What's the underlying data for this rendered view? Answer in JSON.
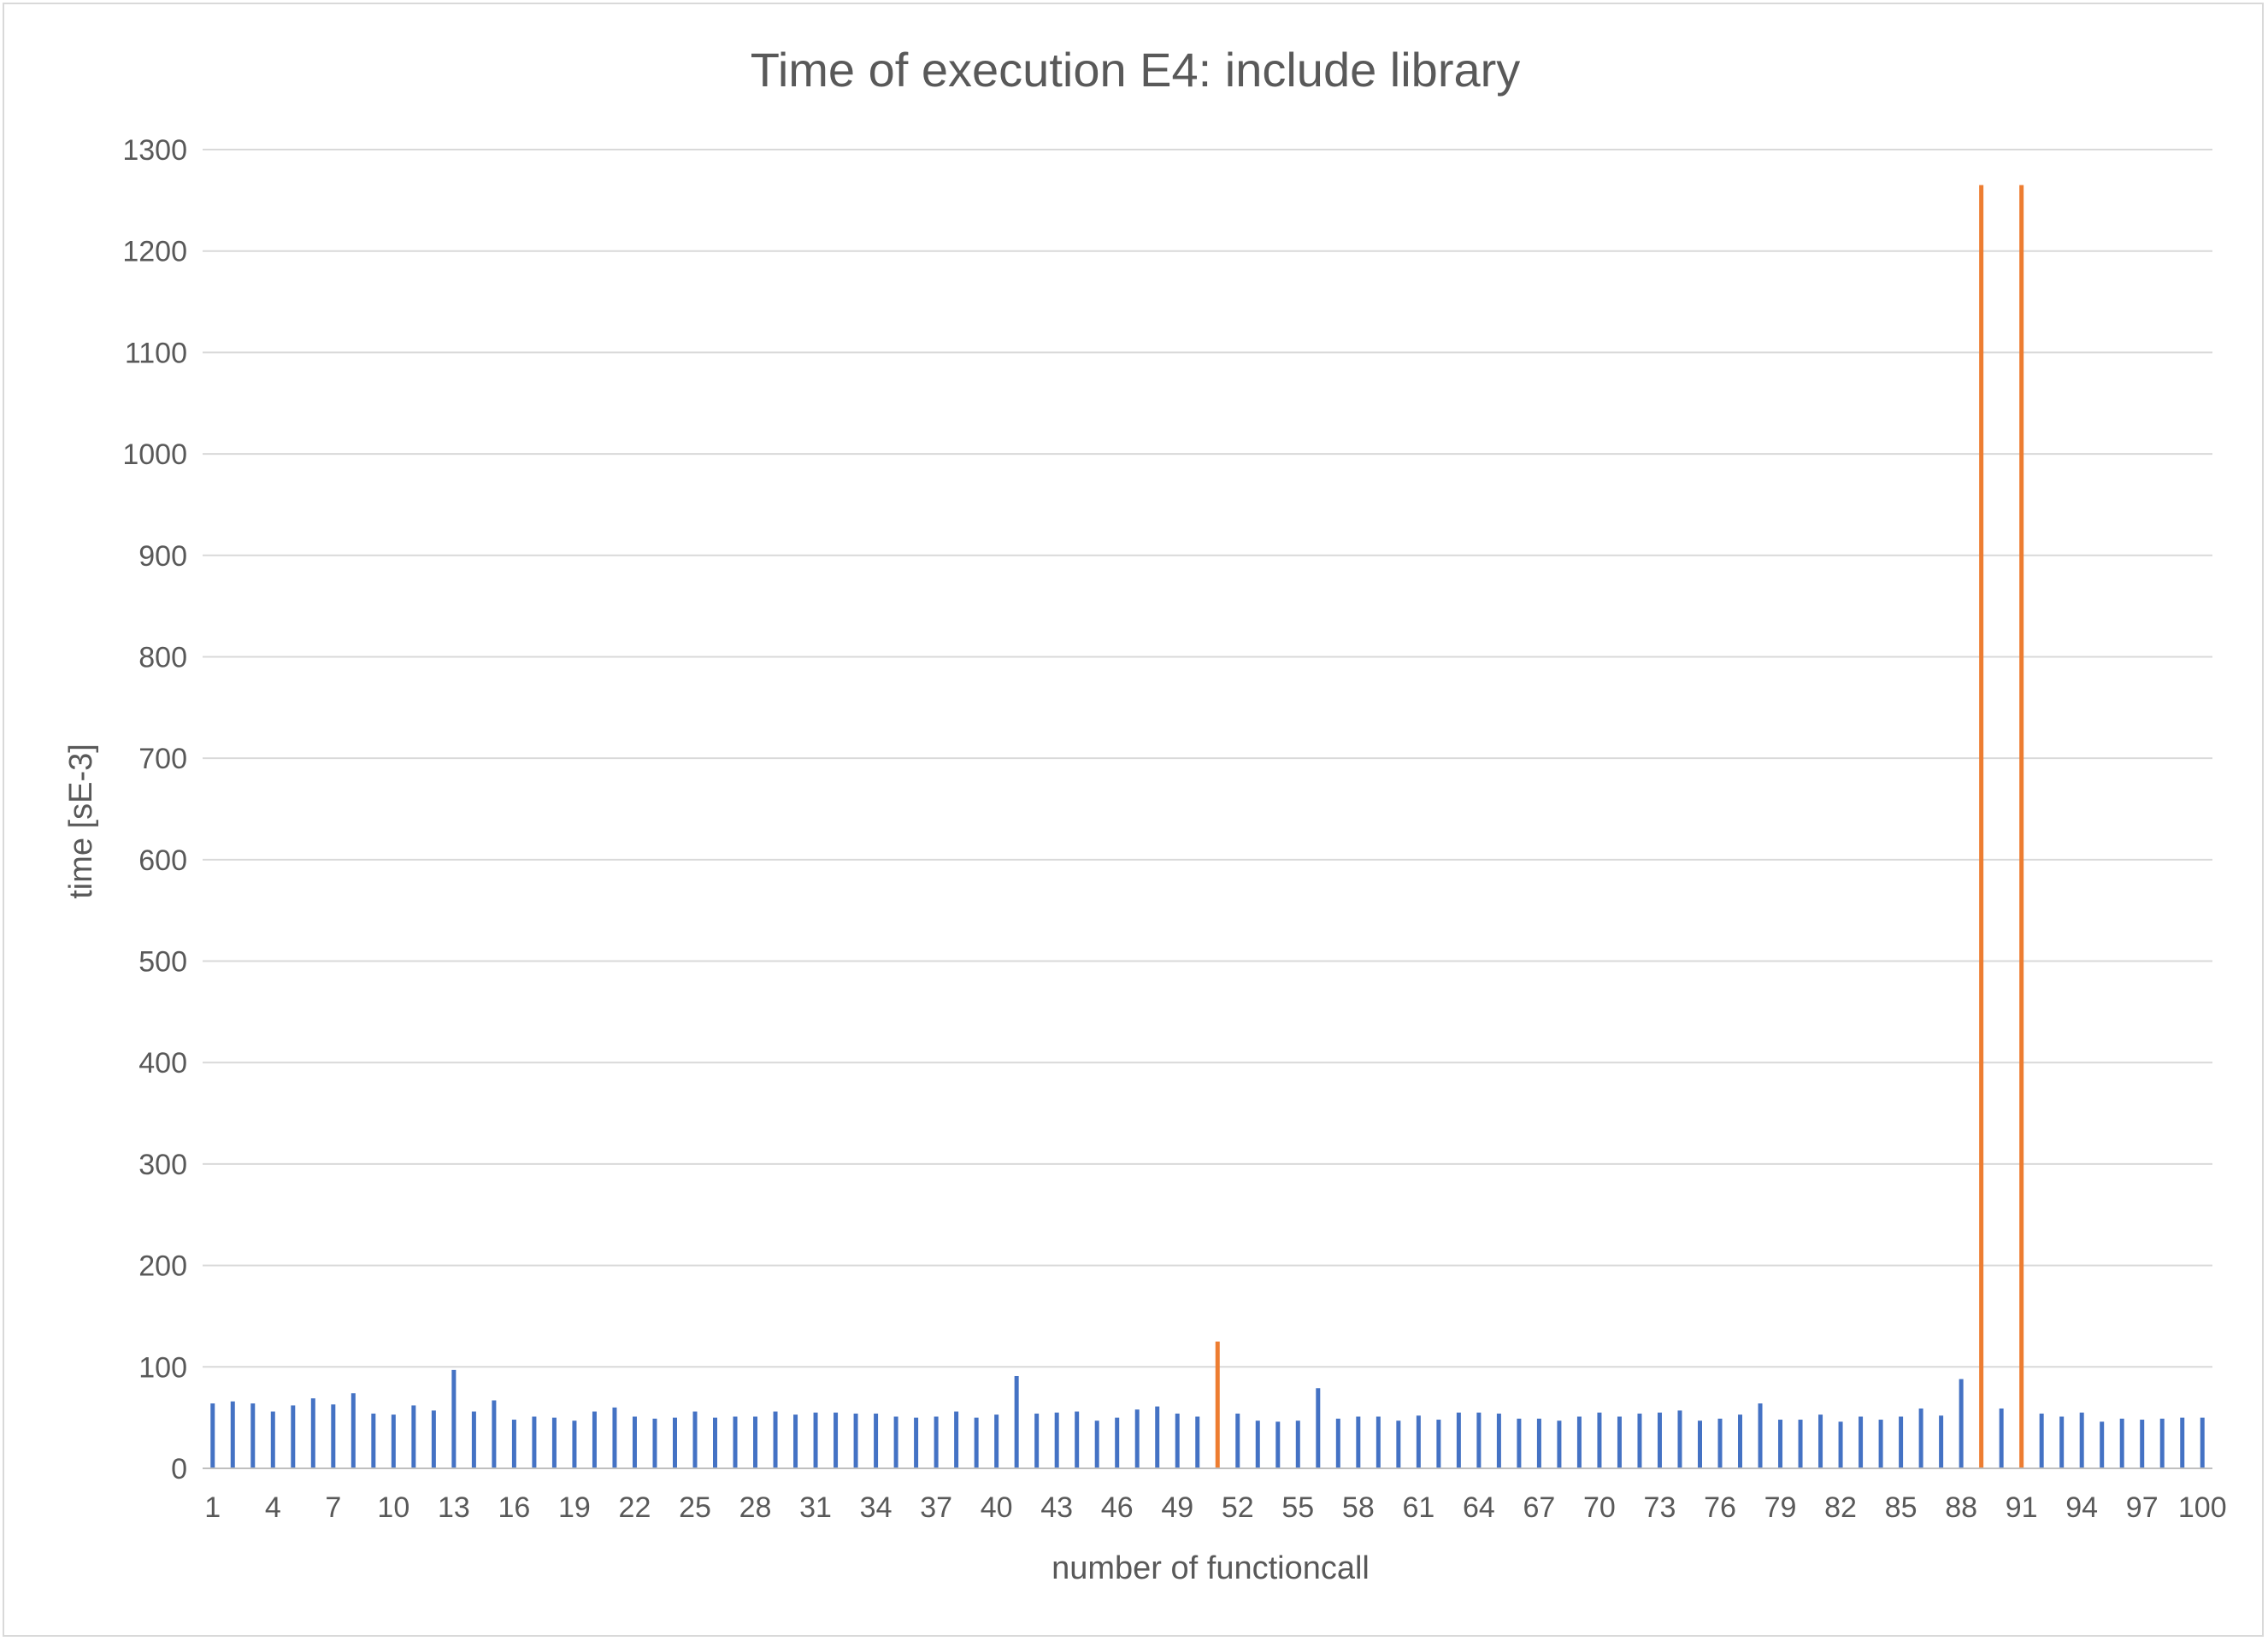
{
  "chart_data": {
    "type": "bar",
    "title": "Time of execution E4: include library",
    "xlabel": "number of functioncall",
    "ylabel": "time [sE-3]",
    "ylim": [
      0,
      1300
    ],
    "yticks": [
      0,
      100,
      200,
      300,
      400,
      500,
      600,
      700,
      800,
      900,
      1000,
      1100,
      1200,
      1300
    ],
    "xtick_labels": [
      "1",
      "4",
      "7",
      "10",
      "13",
      "16",
      "19",
      "22",
      "25",
      "28",
      "31",
      "34",
      "37",
      "40",
      "43",
      "46",
      "49",
      "52",
      "55",
      "58",
      "61",
      "64",
      "67",
      "70",
      "73",
      "76",
      "79",
      "82",
      "85",
      "88",
      "91",
      "94",
      "97",
      "100"
    ],
    "xtick_categories": [
      1,
      4,
      7,
      10,
      13,
      16,
      19,
      22,
      25,
      28,
      31,
      34,
      37,
      40,
      43,
      46,
      49,
      52,
      55,
      58,
      61,
      64,
      67,
      70,
      73,
      76,
      79,
      82,
      85,
      88,
      91,
      94,
      97,
      100
    ],
    "grid": true,
    "legend": "none",
    "x": [
      1,
      2,
      3,
      4,
      5,
      6,
      7,
      8,
      9,
      10,
      11,
      12,
      13,
      14,
      15,
      16,
      17,
      18,
      19,
      20,
      21,
      22,
      23,
      24,
      25,
      26,
      27,
      28,
      29,
      30,
      31,
      32,
      33,
      34,
      35,
      36,
      37,
      38,
      39,
      40,
      41,
      42,
      43,
      44,
      45,
      46,
      47,
      48,
      49,
      50,
      51,
      52,
      53,
      54,
      55,
      56,
      57,
      58,
      59,
      60,
      61,
      62,
      63,
      64,
      65,
      66,
      67,
      68,
      69,
      70,
      71,
      72,
      73,
      74,
      75,
      76,
      77,
      78,
      79,
      80,
      81,
      82,
      83,
      84,
      85,
      86,
      87,
      88,
      89,
      90,
      91,
      92,
      93,
      94,
      95,
      96,
      97,
      98,
      99,
      100
    ],
    "values": [
      64,
      66,
      64,
      56,
      62,
      69,
      63,
      74,
      54,
      53,
      62,
      57,
      97,
      56,
      67,
      48,
      51,
      50,
      47,
      56,
      60,
      51,
      49,
      50,
      56,
      50,
      51,
      51,
      56,
      53,
      55,
      55,
      54,
      54,
      51,
      50,
      51,
      56,
      50,
      53,
      91,
      54,
      55,
      56,
      47,
      50,
      58,
      61,
      54,
      51,
      125,
      54,
      47,
      46,
      47,
      79,
      49,
      51,
      51,
      47,
      52,
      48,
      55,
      55,
      54,
      49,
      49,
      47,
      51,
      55,
      51,
      54,
      55,
      57,
      47,
      49,
      53,
      64,
      48,
      48,
      53,
      46,
      51,
      48,
      51,
      59,
      52,
      88,
      1265,
      59,
      1265,
      54,
      51,
      55,
      46,
      49,
      48,
      49,
      50,
      50
    ],
    "colors": {
      "normal": "#4472c4",
      "outlier": "#ed7d31"
    },
    "outlier_categories": [
      51,
      89,
      91
    ]
  }
}
